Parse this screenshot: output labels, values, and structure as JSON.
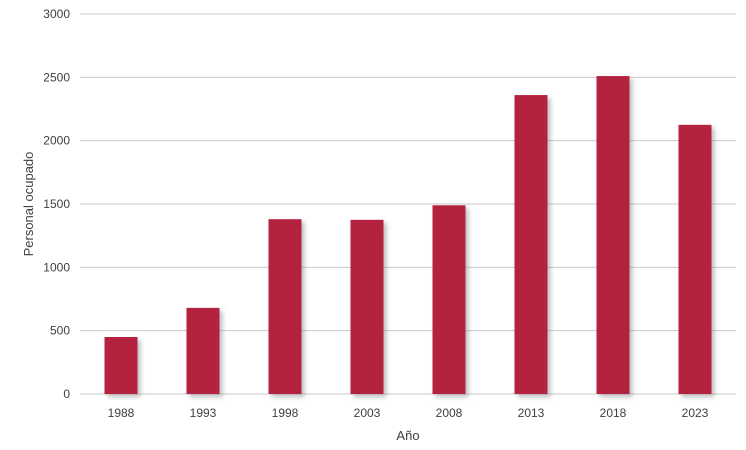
{
  "chart_data": {
    "type": "bar",
    "categories": [
      "1988",
      "1993",
      "1998",
      "2003",
      "2008",
      "2013",
      "2018",
      "2023"
    ],
    "values": [
      450,
      680,
      1380,
      1375,
      1490,
      2360,
      2510,
      2125
    ],
    "title": "",
    "xlabel": "Año",
    "ylabel": "Personal ocupado",
    "ylim": [
      0,
      3000
    ],
    "yticks": [
      0,
      500,
      1000,
      1500,
      2000,
      2500,
      3000
    ],
    "grid": true,
    "legend": "none",
    "bar_color": "#b5243f",
    "bar_shadow_color": "#9a9a9a",
    "gridline_color": "#c8c8c8"
  }
}
